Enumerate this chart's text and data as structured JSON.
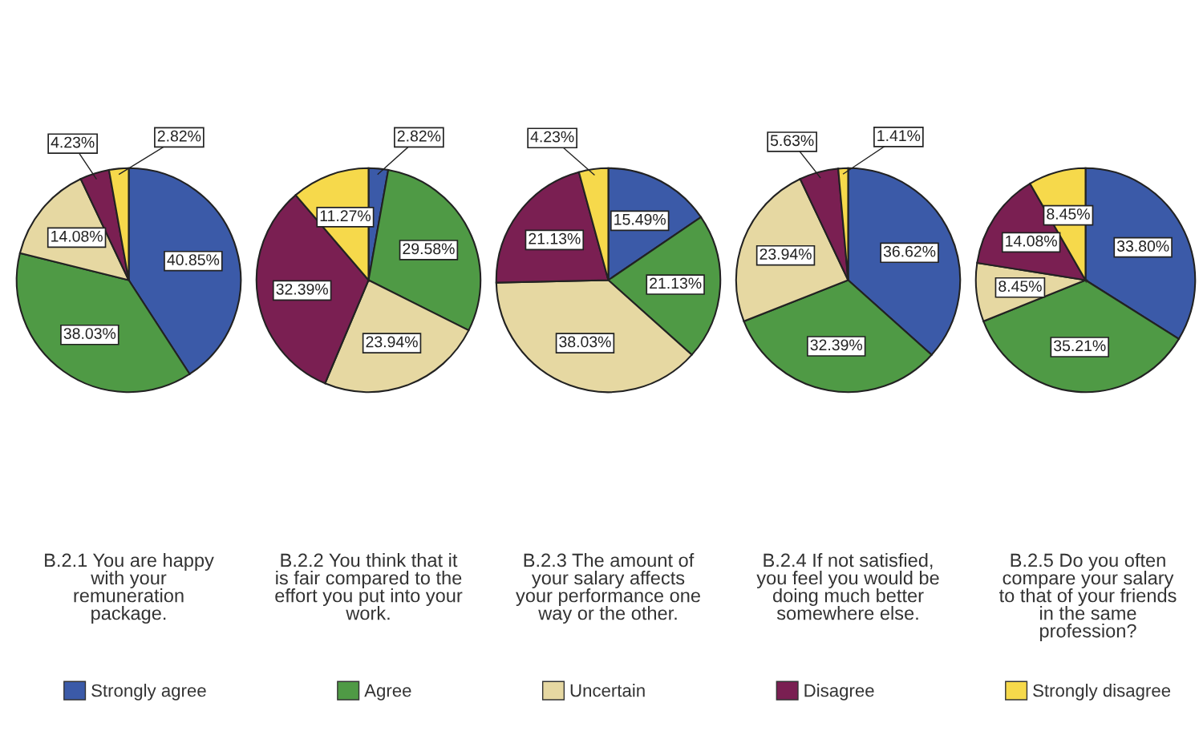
{
  "chart_data": [
    {
      "type": "pie",
      "title": "B.2.1 You are happy\nwith your\nremuneration\npackage.",
      "categories": [
        "Strongly agree",
        "Agree",
        "Uncertain",
        "Disagree",
        "Strongly disagree"
      ],
      "values": [
        40.85,
        38.03,
        14.08,
        4.23,
        2.82
      ],
      "colors": [
        "#3b5aa8",
        "#4f9a45",
        "#e6d8a2",
        "#7a1f52",
        "#f6d94b"
      ],
      "value_labels": [
        "40.85%",
        "38.03%",
        "14.08%",
        "4.23%",
        "2.82%"
      ],
      "legend": "bottom"
    },
    {
      "type": "pie",
      "title": "B.2.2 You think that it\nis fair compared to the\neffort you put into your\nwork.",
      "categories": [
        null,
        null,
        null,
        null,
        null
      ],
      "values": [
        2.82,
        29.58,
        23.94,
        32.39,
        11.27
      ],
      "colors": [
        "#3b5aa8",
        "#4f9a45",
        "#e6d8a2",
        "#7a1f52",
        "#f6d94b"
      ],
      "value_labels": [
        "2.82%",
        "29.58%",
        "23.94%",
        "32.39%",
        "11.27%"
      ]
    },
    {
      "type": "pie",
      "title": "B.2.3 The amount of\nyour salary affects\nyour performance one\nway or the other.",
      "categories": [
        null,
        null,
        null,
        null,
        null
      ],
      "values": [
        15.49,
        21.13,
        38.03,
        21.13,
        4.23
      ],
      "colors": [
        "#3b5aa8",
        "#4f9a45",
        "#e6d8a2",
        "#7a1f52",
        "#f6d94b"
      ],
      "value_labels": [
        "15.49%",
        "21.13%",
        "38.03%",
        "21.13%",
        "4.23%"
      ]
    },
    {
      "type": "pie",
      "title": "B.2.4 If not satisfied,\nyou feel you would be\ndoing much better\nsomewhere else.",
      "categories": [
        null,
        null,
        null,
        null,
        null
      ],
      "values": [
        36.62,
        32.39,
        23.94,
        5.63,
        1.41
      ],
      "colors": [
        "#3b5aa8",
        "#4f9a45",
        "#e6d8a2",
        "#7a1f52",
        "#f6d94b"
      ],
      "value_labels": [
        "36.62%",
        "32.39%",
        "23.94%",
        "5.63%",
        "1.41%"
      ]
    },
    {
      "type": "pie",
      "title": "B.2.5 Do you often\ncompare your salary\nto that of your friends\nin the same\nprofession?",
      "categories": [
        null,
        null,
        null,
        null,
        null
      ],
      "values": [
        33.8,
        35.21,
        8.45,
        14.08,
        8.45
      ],
      "colors": [
        "#3b5aa8",
        "#4f9a45",
        "#e6d8a2",
        "#7a1f52",
        "#f6d94b"
      ],
      "value_labels": [
        "33.80%",
        "35.21%",
        "8.45%",
        "14.08%",
        "8.45%"
      ]
    }
  ]
}
